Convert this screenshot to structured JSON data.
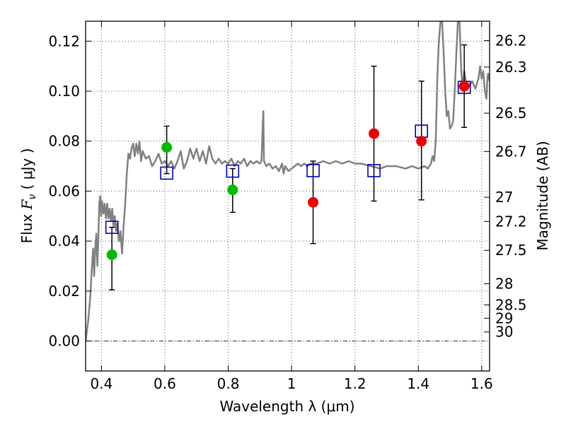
{
  "chart_data": {
    "type": "scatter",
    "xlabel": "Wavelength  λ (μm)",
    "ylabel_parts": {
      "prefix": "Flux  ",
      "var": "F",
      "sub": "ν",
      "unit": "  (  μJy  )"
    },
    "ylabel_right": "Magnitude (AB)",
    "xlim": [
      0.35,
      1.625
    ],
    "ylim": [
      -0.012,
      0.128
    ],
    "grid": true,
    "x_ticks": [
      {
        "value": 0.4,
        "label": "0.4"
      },
      {
        "value": 0.6,
        "label": "0.6"
      },
      {
        "value": 0.8,
        "label": "0.8"
      },
      {
        "value": 1.0,
        "label": "1"
      },
      {
        "value": 1.2,
        "label": "1.2"
      },
      {
        "value": 1.4,
        "label": "1.4"
      },
      {
        "value": 1.6,
        "label": "1.6"
      }
    ],
    "y_ticks": [
      {
        "value": 0.0,
        "label": "0.00"
      },
      {
        "value": 0.02,
        "label": "0.02"
      },
      {
        "value": 0.04,
        "label": "0.04"
      },
      {
        "value": 0.06,
        "label": "0.06"
      },
      {
        "value": 0.08,
        "label": "0.08"
      },
      {
        "value": 0.1,
        "label": "0.10"
      },
      {
        "value": 0.12,
        "label": "0.12"
      }
    ],
    "mag_ticks": [
      {
        "value": 26.2,
        "label": "26.2"
      },
      {
        "value": 26.3,
        "label": "26.3"
      },
      {
        "value": 26.5,
        "label": "26.5"
      },
      {
        "value": 26.7,
        "label": "26.7"
      },
      {
        "value": 27.0,
        "label": "27"
      },
      {
        "value": 27.2,
        "label": "27.2"
      },
      {
        "value": 27.5,
        "label": "27.5"
      },
      {
        "value": 28.0,
        "label": "28"
      },
      {
        "value": 28.5,
        "label": "28.5"
      },
      {
        "value": 29.0,
        "label": "29"
      },
      {
        "value": 30.0,
        "label": "30"
      }
    ],
    "mag_zero_point": 23.9,
    "colors": {
      "model": "#808080",
      "green": "#00bb00",
      "red": "#ee0000",
      "square": "#0000bb",
      "errorbar": "#000000",
      "grid": "#555555"
    },
    "model_spectrum": [
      [
        0.35,
        0.0
      ],
      [
        0.358,
        0.008
      ],
      [
        0.365,
        0.018
      ],
      [
        0.37,
        0.03
      ],
      [
        0.374,
        0.037
      ],
      [
        0.377,
        0.026
      ],
      [
        0.38,
        0.036
      ],
      [
        0.384,
        0.043
      ],
      [
        0.387,
        0.03
      ],
      [
        0.39,
        0.04
      ],
      [
        0.393,
        0.055
      ],
      [
        0.396,
        0.058
      ],
      [
        0.399,
        0.05
      ],
      [
        0.402,
        0.056
      ],
      [
        0.406,
        0.051
      ],
      [
        0.41,
        0.055
      ],
      [
        0.414,
        0.049
      ],
      [
        0.418,
        0.055
      ],
      [
        0.422,
        0.049
      ],
      [
        0.426,
        0.053
      ],
      [
        0.43,
        0.048
      ],
      [
        0.434,
        0.053
      ],
      [
        0.438,
        0.046
      ],
      [
        0.442,
        0.05
      ],
      [
        0.446,
        0.044
      ],
      [
        0.45,
        0.047
      ],
      [
        0.455,
        0.04
      ],
      [
        0.46,
        0.044
      ],
      [
        0.465,
        0.035
      ],
      [
        0.47,
        0.046
      ],
      [
        0.475,
        0.055
      ],
      [
        0.48,
        0.067
      ],
      [
        0.485,
        0.075
      ],
      [
        0.49,
        0.073
      ],
      [
        0.495,
        0.077
      ],
      [
        0.5,
        0.079
      ],
      [
        0.505,
        0.074
      ],
      [
        0.51,
        0.079
      ],
      [
        0.515,
        0.075
      ],
      [
        0.52,
        0.08
      ],
      [
        0.525,
        0.072
      ],
      [
        0.53,
        0.076
      ],
      [
        0.54,
        0.073
      ],
      [
        0.55,
        0.074
      ],
      [
        0.56,
        0.07
      ],
      [
        0.57,
        0.072
      ],
      [
        0.58,
        0.075
      ],
      [
        0.59,
        0.071
      ],
      [
        0.6,
        0.072
      ],
      [
        0.61,
        0.07
      ],
      [
        0.62,
        0.072
      ],
      [
        0.63,
        0.069
      ],
      [
        0.64,
        0.072
      ],
      [
        0.65,
        0.076
      ],
      [
        0.66,
        0.069
      ],
      [
        0.67,
        0.072
      ],
      [
        0.68,
        0.077
      ],
      [
        0.69,
        0.073
      ],
      [
        0.7,
        0.077
      ],
      [
        0.71,
        0.072
      ],
      [
        0.72,
        0.076
      ],
      [
        0.73,
        0.071
      ],
      [
        0.74,
        0.078
      ],
      [
        0.75,
        0.073
      ],
      [
        0.76,
        0.071
      ],
      [
        0.77,
        0.073
      ],
      [
        0.78,
        0.071
      ],
      [
        0.79,
        0.072
      ],
      [
        0.8,
        0.071
      ],
      [
        0.81,
        0.073
      ],
      [
        0.82,
        0.07
      ],
      [
        0.83,
        0.072
      ],
      [
        0.84,
        0.071
      ],
      [
        0.85,
        0.073
      ],
      [
        0.86,
        0.07
      ],
      [
        0.87,
        0.072
      ],
      [
        0.88,
        0.071
      ],
      [
        0.89,
        0.072
      ],
      [
        0.9,
        0.071
      ],
      [
        0.905,
        0.072
      ],
      [
        0.909,
        0.086
      ],
      [
        0.911,
        0.092
      ],
      [
        0.913,
        0.072
      ],
      [
        0.92,
        0.07
      ],
      [
        0.93,
        0.071
      ],
      [
        0.94,
        0.069
      ],
      [
        0.95,
        0.07
      ],
      [
        0.96,
        0.068
      ],
      [
        0.97,
        0.071
      ],
      [
        0.975,
        0.067
      ],
      [
        0.98,
        0.07
      ],
      [
        0.99,
        0.068
      ],
      [
        1.0,
        0.069
      ],
      [
        1.01,
        0.07
      ],
      [
        1.02,
        0.071
      ],
      [
        1.03,
        0.07
      ],
      [
        1.04,
        0.071
      ],
      [
        1.05,
        0.07
      ],
      [
        1.06,
        0.071
      ],
      [
        1.08,
        0.071
      ],
      [
        1.1,
        0.072
      ],
      [
        1.12,
        0.071
      ],
      [
        1.14,
        0.072
      ],
      [
        1.16,
        0.071
      ],
      [
        1.18,
        0.072
      ],
      [
        1.2,
        0.071
      ],
      [
        1.22,
        0.071
      ],
      [
        1.25,
        0.07
      ],
      [
        1.28,
        0.069
      ],
      [
        1.3,
        0.07
      ],
      [
        1.33,
        0.07
      ],
      [
        1.36,
        0.069
      ],
      [
        1.38,
        0.07
      ],
      [
        1.4,
        0.069
      ],
      [
        1.42,
        0.07
      ],
      [
        1.43,
        0.069
      ],
      [
        1.44,
        0.071
      ],
      [
        1.445,
        0.074
      ],
      [
        1.45,
        0.072
      ],
      [
        1.455,
        0.08
      ],
      [
        1.46,
        0.105
      ],
      [
        1.465,
        0.12
      ],
      [
        1.47,
        0.128
      ],
      [
        1.475,
        0.128
      ],
      [
        1.48,
        0.115
      ],
      [
        1.485,
        0.1
      ],
      [
        1.49,
        0.09
      ],
      [
        1.495,
        0.092
      ],
      [
        1.5,
        0.085
      ],
      [
        1.505,
        0.086
      ],
      [
        1.51,
        0.088
      ],
      [
        1.515,
        0.1
      ],
      [
        1.52,
        0.115
      ],
      [
        1.525,
        0.128
      ],
      [
        1.53,
        0.128
      ],
      [
        1.535,
        0.11
      ],
      [
        1.54,
        0.1
      ],
      [
        1.545,
        0.108
      ],
      [
        1.55,
        0.104
      ],
      [
        1.56,
        0.102
      ],
      [
        1.57,
        0.104
      ],
      [
        1.58,
        0.101
      ],
      [
        1.59,
        0.105
      ],
      [
        1.595,
        0.11
      ],
      [
        1.6,
        0.105
      ],
      [
        1.605,
        0.108
      ],
      [
        1.61,
        0.1
      ],
      [
        1.615,
        0.097
      ],
      [
        1.618,
        0.105
      ],
      [
        1.62,
        0.107
      ],
      [
        1.625,
        0.104
      ]
    ],
    "model_squares": [
      {
        "x": 0.433,
        "y": 0.0455
      },
      {
        "x": 0.606,
        "y": 0.0672
      },
      {
        "x": 0.814,
        "y": 0.068
      },
      {
        "x": 1.068,
        "y": 0.0682
      },
      {
        "x": 1.26,
        "y": 0.0682
      },
      {
        "x": 1.41,
        "y": 0.084
      },
      {
        "x": 1.545,
        "y": 0.1015
      }
    ],
    "series": [
      {
        "color_key": "green",
        "points": [
          {
            "x": 0.433,
            "y": 0.0345,
            "yerr_lo": 0.0205,
            "yerr_hi": 0.0455
          },
          {
            "x": 0.606,
            "y": 0.0775,
            "yerr_lo": 0.067,
            "yerr_hi": 0.086
          },
          {
            "x": 0.814,
            "y": 0.0605,
            "yerr_lo": 0.0515,
            "yerr_hi": 0.069
          }
        ]
      },
      {
        "color_key": "red",
        "points": [
          {
            "x": 1.068,
            "y": 0.0555,
            "yerr_lo": 0.039,
            "yerr_hi": 0.072
          },
          {
            "x": 1.26,
            "y": 0.083,
            "yerr_lo": 0.056,
            "yerr_hi": 0.11
          },
          {
            "x": 1.41,
            "y": 0.08,
            "yerr_lo": 0.0565,
            "yerr_hi": 0.104
          },
          {
            "x": 1.545,
            "y": 0.102,
            "yerr_lo": 0.0855,
            "yerr_hi": 0.1185
          }
        ]
      }
    ]
  }
}
